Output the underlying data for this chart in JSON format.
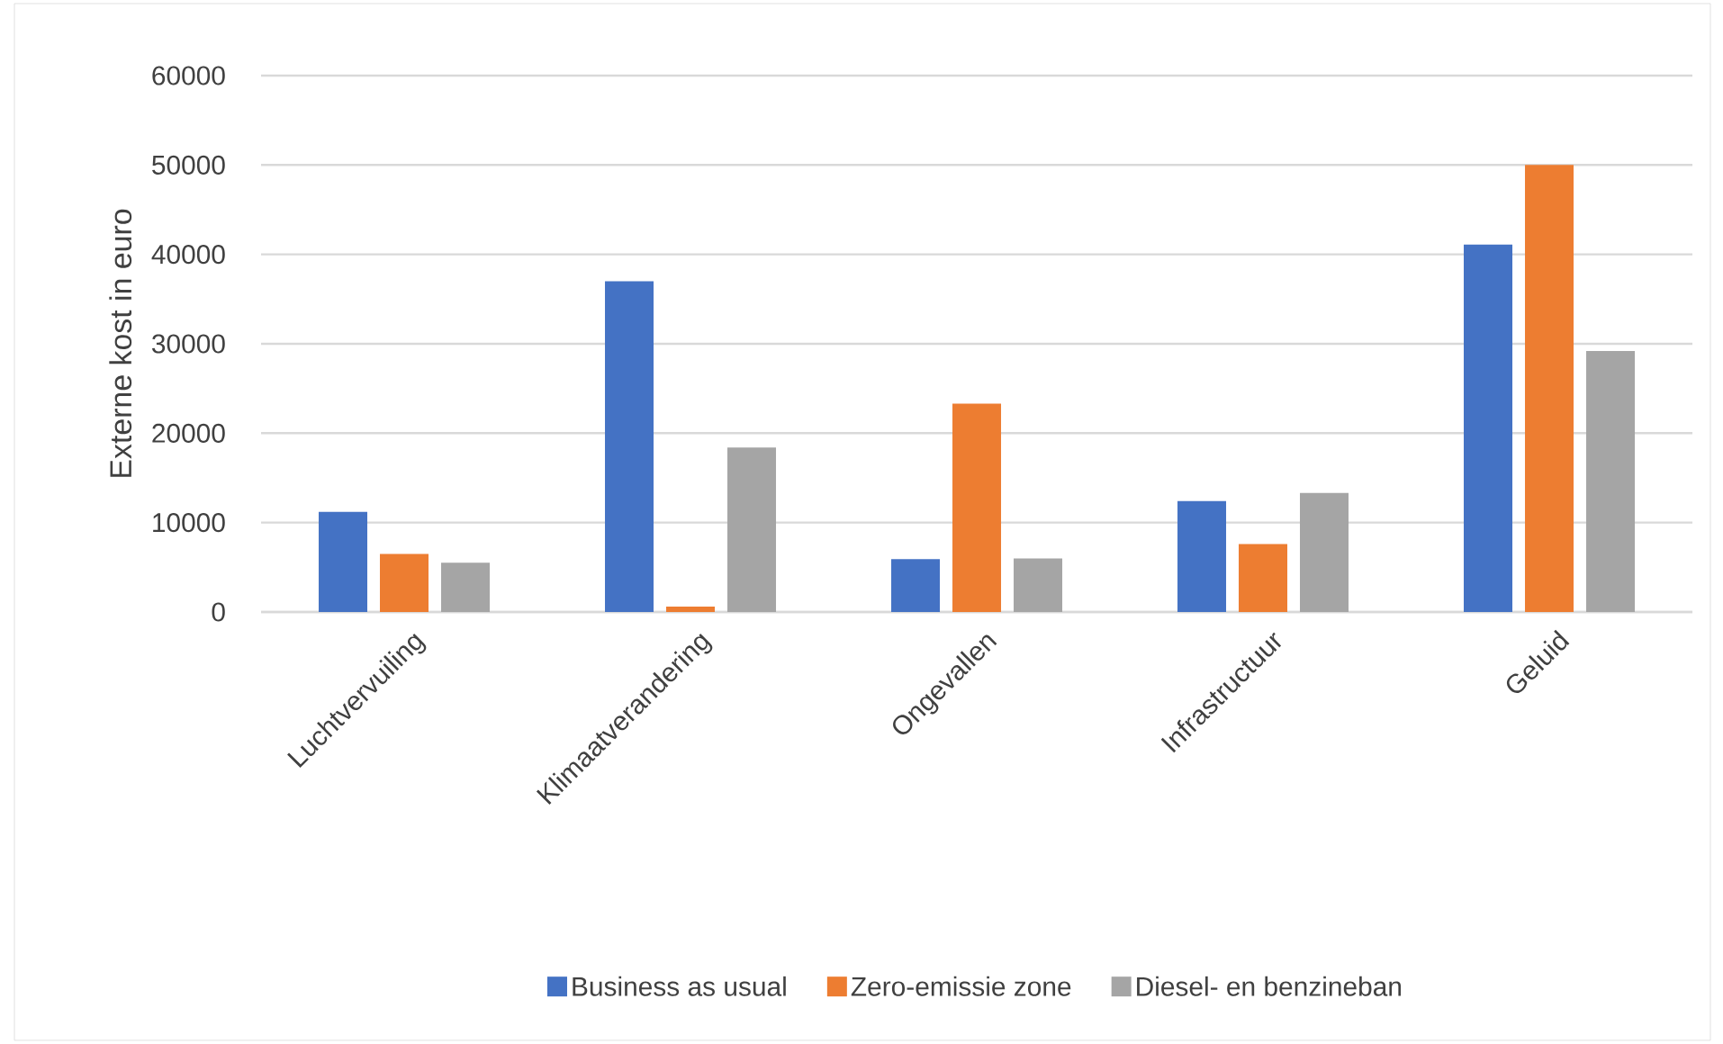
{
  "chart_data": {
    "type": "bar",
    "ylabel": "Externe kost in euro",
    "categories": [
      "Luchtvervuiling",
      "Klimaatverandering",
      "Ongevallen",
      "Infrastructuur",
      "Geluid"
    ],
    "series": [
      {
        "name": "Business as usual",
        "color": "#4472c4",
        "values": [
          11200,
          37000,
          5900,
          12400,
          41100
        ]
      },
      {
        "name": "Zero-emissie zone",
        "color": "#ed7d31",
        "values": [
          6500,
          600,
          23300,
          7600,
          50000
        ]
      },
      {
        "name": "Diesel- en benzineban",
        "color": "#a5a5a5",
        "values": [
          5500,
          18400,
          6000,
          13300,
          29200
        ]
      }
    ],
    "ylim": [
      0,
      60000
    ],
    "yticks": [
      0,
      10000,
      20000,
      30000,
      40000,
      50000,
      60000
    ],
    "grid": "y",
    "legend": "bottom"
  }
}
